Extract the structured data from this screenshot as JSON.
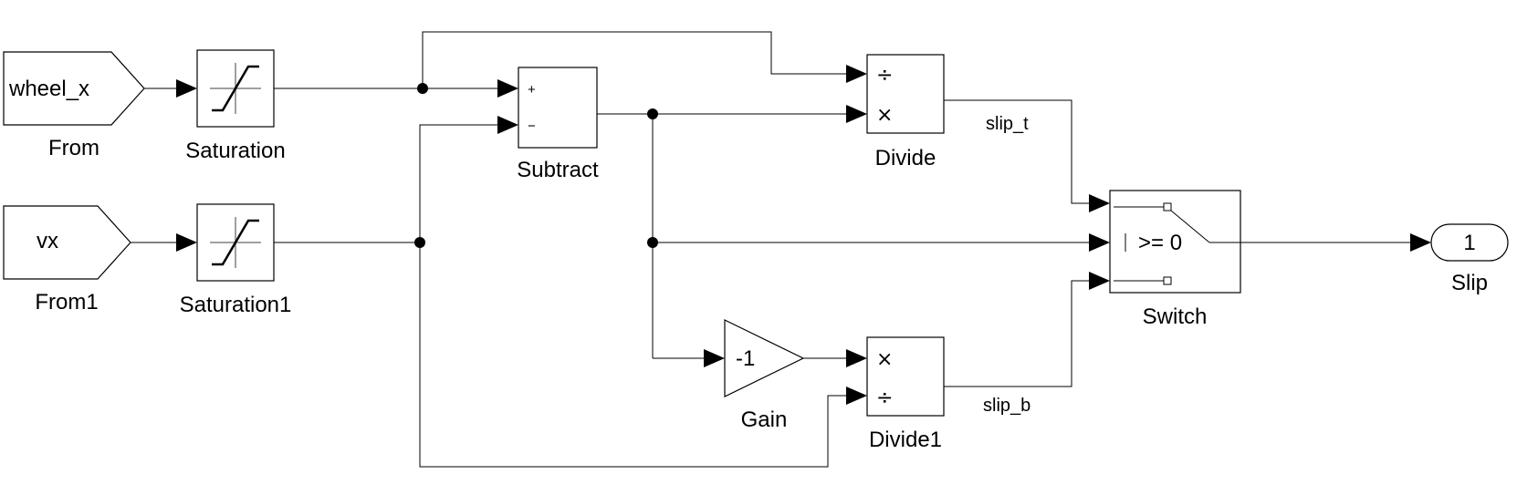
{
  "blocks": {
    "from": {
      "value": "wheel_x",
      "name": "From"
    },
    "from1": {
      "value": "vx",
      "name": "From1"
    },
    "saturation": {
      "name": "Saturation"
    },
    "saturation1": {
      "name": "Saturation1"
    },
    "subtract": {
      "name": "Subtract",
      "plus": "+",
      "minus": "−"
    },
    "divide": {
      "name": "Divide",
      "op1": "÷",
      "op2": "×"
    },
    "divide1": {
      "name": "Divide1",
      "op1": "×",
      "op2": "÷"
    },
    "gain": {
      "name": "Gain",
      "value": "-1"
    },
    "switch": {
      "name": "Switch",
      "criteria": ">= 0"
    },
    "outport": {
      "name": "Slip",
      "number": "1"
    }
  },
  "signals": {
    "slip_t": "slip_t",
    "slip_b": "slip_b"
  }
}
